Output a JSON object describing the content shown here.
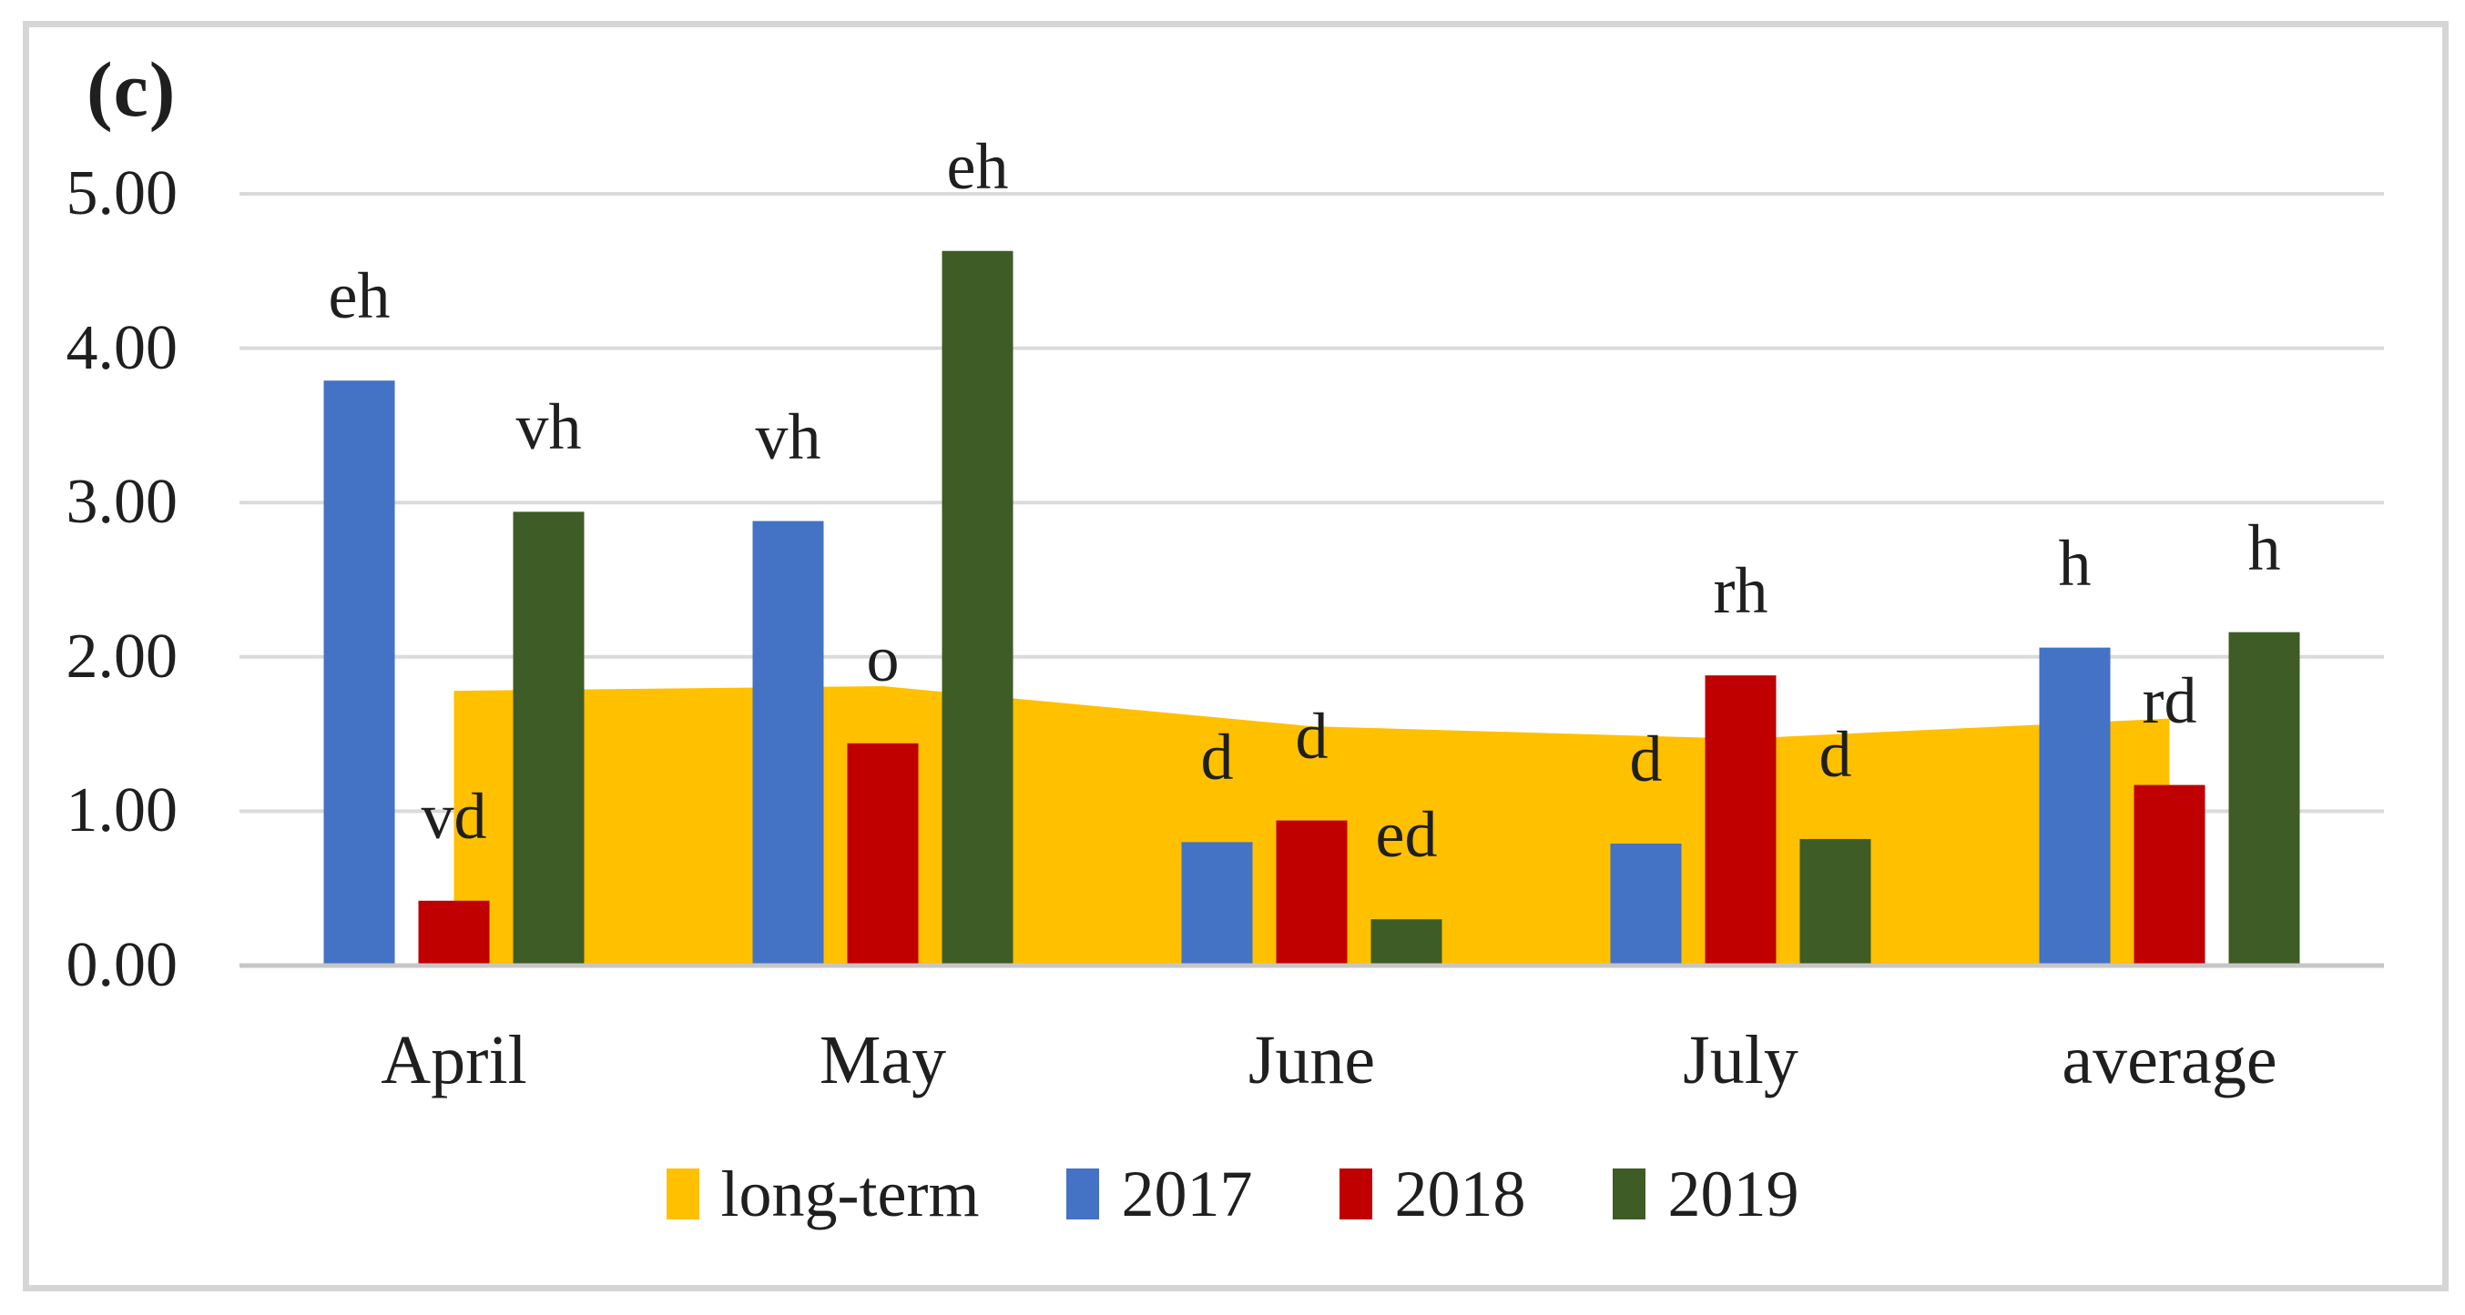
{
  "panel_label": "(c)",
  "colors": {
    "background": "#ffffff",
    "frame_border": "#d6d6d6",
    "gridline": "#dadada",
    "axis_line": "#c6c6c6",
    "text": "#1f1f1f",
    "long_term": "#FFC000",
    "y2017": "#4472C4",
    "y2018": "#C00000",
    "y2019": "#3E5C25"
  },
  "chart_data": {
    "type": "combo",
    "subtype": "clustered-column + area",
    "title": "(c)",
    "categories": [
      "April",
      "May",
      "June",
      "July",
      "average"
    ],
    "y_axis": {
      "min": 0,
      "max": 5,
      "tick_interval": 1,
      "tick_labels": [
        "0.00",
        "1.00",
        "2.00",
        "3.00",
        "4.00",
        "5.00"
      ]
    },
    "grid": "horizontal",
    "legend_position": "bottom",
    "series": [
      {
        "name": "long-term",
        "type": "area",
        "color": "#FFC000",
        "values": [
          1.78,
          1.81,
          1.55,
          1.47,
          1.6
        ],
        "point_labels": [
          "",
          "",
          "",
          "",
          ""
        ]
      },
      {
        "name": "2017",
        "type": "column",
        "color": "#4472C4",
        "values": [
          3.79,
          2.88,
          0.8,
          0.79,
          2.06
        ],
        "point_labels": [
          "eh",
          "vh",
          "d",
          "d",
          "h"
        ]
      },
      {
        "name": "2018",
        "type": "column",
        "color": "#C00000",
        "values": [
          0.42,
          1.44,
          0.94,
          1.88,
          1.17
        ],
        "point_labels": [
          "vd",
          "o",
          "d",
          "rh",
          "rd"
        ]
      },
      {
        "name": "2019",
        "type": "column",
        "color": "#3E5C25",
        "values": [
          2.94,
          4.63,
          0.3,
          0.82,
          2.16
        ],
        "point_labels": [
          "vh",
          "eh",
          "ed",
          "d",
          "h"
        ]
      }
    ]
  }
}
